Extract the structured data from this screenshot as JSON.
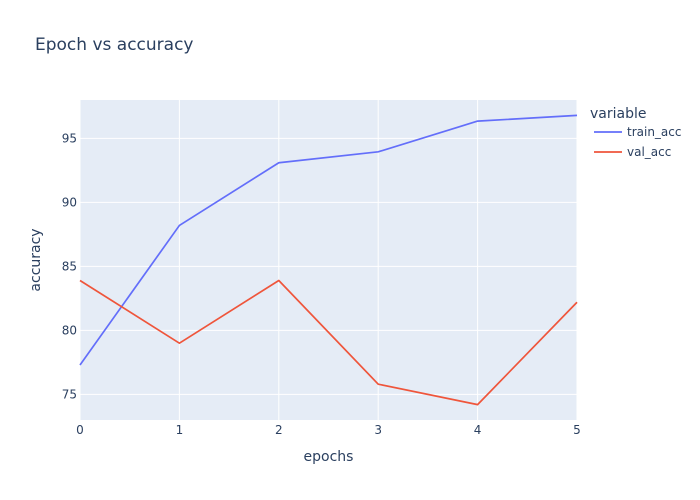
{
  "chart_data": {
    "type": "line",
    "title": "Epoch vs accuracy",
    "xlabel": "epochs",
    "ylabel": "accuracy",
    "x": [
      0,
      1,
      2,
      3,
      4,
      5
    ],
    "series": [
      {
        "name": "train_acc",
        "color": "#636efa",
        "values": [
          77.3,
          88.2,
          93.1,
          93.95,
          96.35,
          96.8
        ]
      },
      {
        "name": "val_acc",
        "color": "#ef553b",
        "values": [
          83.9,
          79.0,
          83.9,
          75.8,
          74.2,
          82.2
        ]
      }
    ],
    "xticks": [
      0,
      1,
      2,
      3,
      4,
      5
    ],
    "yticks": [
      75,
      80,
      85,
      90,
      95
    ],
    "xlim": [
      0,
      5
    ],
    "ylim": [
      73.0,
      98.0
    ],
    "grid": true,
    "legend": {
      "title": "variable",
      "position": "right"
    },
    "plot_background": "#e5ecf6"
  }
}
